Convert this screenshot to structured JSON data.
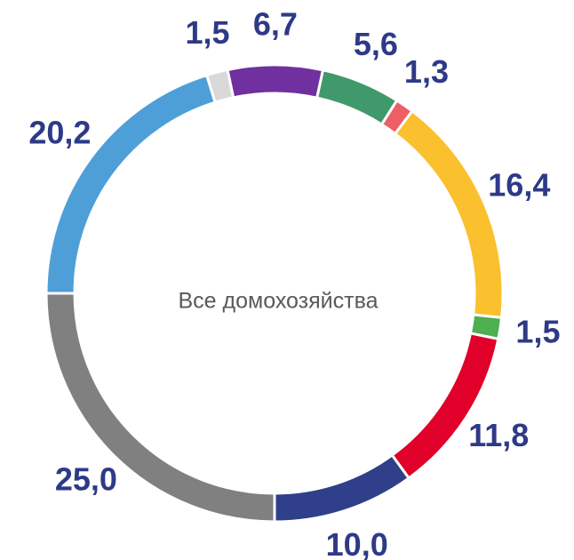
{
  "chart_data": {
    "type": "donut",
    "center_label": "Все домохозяйства",
    "values": [
      25.0,
      20.2,
      1.5,
      6.7,
      5.6,
      1.3,
      16.4,
      1.5,
      11.8,
      10.0
    ],
    "value_labels": [
      "25,0",
      "20,2",
      "1,5",
      "6,7",
      "5,6",
      "1,3",
      "16,4",
      "1,5",
      "11,8",
      "10,0"
    ],
    "colors": [
      "#808080",
      "#4e9fd8",
      "#d9d9d9",
      "#7030a0",
      "#40996a",
      "#ec5f67",
      "#fbc02d",
      "#4caf50",
      "#e0002a",
      "#2f3f8a"
    ]
  }
}
